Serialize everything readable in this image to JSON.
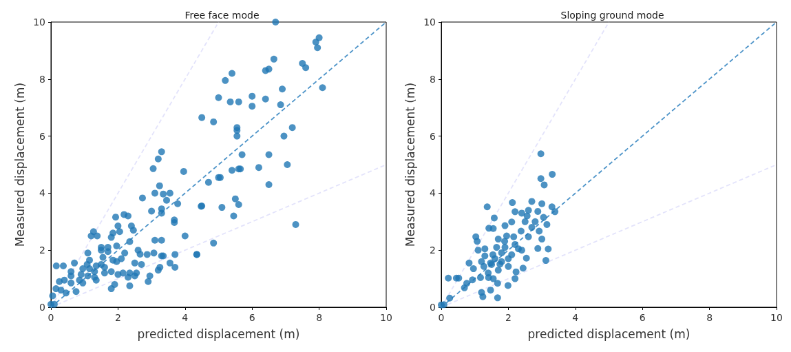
{
  "chart_data": [
    {
      "type": "scatter",
      "title": "Free face mode",
      "xlabel": "predicted displacement (m)",
      "ylabel": "Measured displacement (m)",
      "xlim": [
        0,
        10
      ],
      "ylim": [
        0,
        10
      ],
      "xticks": [
        0,
        2,
        4,
        6,
        8,
        10
      ],
      "yticks": [
        0,
        2,
        4,
        6,
        8,
        10
      ],
      "grid": false,
      "series": [
        {
          "marker": "circle",
          "color": "#1f77b4",
          "x": [
            6.7,
            8.0,
            7.9,
            7.95,
            7.5,
            7.6,
            6.65,
            6.4,
            6.5,
            5.4,
            5.2,
            5.0,
            5.35,
            5.6,
            6.0,
            6.4,
            6.9,
            6.0,
            6.85,
            8.1,
            4.5,
            4.85,
            5.55,
            5.55,
            5.55,
            6.95,
            7.2,
            5.7,
            6.5,
            5.6,
            5.65,
            6.2,
            5.0,
            5.05,
            5.4,
            7.05,
            6.5,
            4.5,
            5.5,
            5.1,
            5.6,
            5.45,
            7.3,
            4.85,
            4.35,
            3.3,
            3.2,
            3.05,
            3.96,
            4.7,
            3.24,
            3.1,
            3.35,
            3.55,
            2.73,
            3.45,
            3.78,
            4.48,
            3.0,
            3.3,
            3.3,
            1.93,
            2.18,
            2.3,
            3.68,
            3.68,
            2.0,
            2.4,
            2.46,
            2.05,
            1.27,
            1.2,
            1.38,
            1.85,
            1.8,
            4.0,
            3.1,
            3.3,
            2.35,
            1.5,
            1.7,
            1.96,
            1.1,
            1.5,
            2.2,
            2.6,
            2.66,
            2.87,
            3.07,
            3.3,
            3.35,
            3.7,
            4.35,
            2.5,
            2.7,
            3.55,
            3.25,
            3.2,
            3.7,
            0.7,
            0.16,
            0.37,
            1.08,
            1.15,
            1.35,
            1.6,
            1.96,
            2.1,
            1.85,
            1.6,
            1.8,
            2.0,
            2.15,
            2.35,
            2.55,
            2.5,
            2.3,
            2.95,
            1.8,
            1.9,
            2.35,
            0.6,
            0.6,
            0.9,
            1.1,
            1.3,
            0.85,
            0.4,
            0.25,
            0.6,
            0.95,
            1.35,
            0.75,
            0.45,
            0.3,
            0.15,
            0.05,
            0.0,
            0.1,
            0.95,
            1.3,
            1.55,
            1.7,
            1.5,
            1.15,
            2.9
          ],
          "values": [
            10.0,
            9.45,
            9.3,
            9.1,
            8.55,
            8.4,
            8.7,
            8.3,
            8.35,
            8.2,
            7.95,
            7.35,
            7.2,
            7.2,
            7.4,
            7.3,
            7.65,
            7.05,
            7.1,
            7.7,
            6.65,
            6.5,
            6.3,
            6.2,
            6.0,
            6.0,
            6.3,
            5.35,
            5.35,
            4.85,
            4.85,
            4.9,
            4.55,
            4.55,
            4.8,
            5.0,
            4.3,
            3.55,
            3.8,
            3.5,
            3.6,
            3.2,
            2.9,
            2.25,
            1.85,
            5.45,
            5.2,
            4.86,
            4.76,
            4.38,
            4.26,
            4.0,
            3.97,
            4.0,
            3.83,
            3.75,
            3.63,
            3.54,
            3.37,
            3.45,
            3.3,
            3.16,
            3.25,
            3.2,
            3.06,
            2.97,
            2.85,
            2.85,
            2.7,
            2.65,
            2.65,
            2.5,
            2.5,
            2.6,
            2.45,
            2.5,
            2.35,
            2.35,
            2.3,
            2.1,
            2.1,
            2.15,
            1.9,
            2.0,
            1.9,
            2.0,
            1.86,
            1.85,
            1.9,
            1.8,
            1.8,
            1.85,
            1.85,
            1.55,
            1.5,
            1.55,
            1.4,
            1.3,
            1.4,
            1.55,
            1.45,
            1.45,
            1.5,
            1.35,
            1.45,
            1.4,
            1.6,
            1.7,
            1.65,
            1.2,
            1.25,
            1.15,
            1.2,
            1.2,
            1.2,
            1.1,
            1.05,
            1.1,
            0.65,
            0.8,
            0.75,
            1.25,
            1.1,
            1.15,
            1.1,
            1.05,
            0.95,
            0.95,
            0.9,
            0.85,
            0.85,
            0.95,
            0.55,
            0.5,
            0.6,
            0.65,
            0.4,
            0.1,
            0.1,
            1.35,
            1.25,
            1.75,
            1.95,
            1.5,
            1.65,
            0.9
          ]
        },
        {
          "type": "line",
          "color": "#4c93c8",
          "line_style": "dashed",
          "x": [
            0,
            10
          ],
          "values": [
            0,
            10
          ]
        },
        {
          "type": "line",
          "color": "#e3e3fb",
          "line_style": "dashed",
          "x": [
            0,
            5
          ],
          "values": [
            0,
            10
          ]
        },
        {
          "type": "line",
          "color": "#e3e3fb",
          "line_style": "dashed",
          "x": [
            0,
            10
          ],
          "values": [
            0,
            5
          ]
        }
      ]
    },
    {
      "type": "scatter",
      "title": "Sloping ground mode",
      "xlabel": "predicted displacement (m)",
      "ylabel": "Measured displacement (m)",
      "xlim": [
        0,
        10
      ],
      "ylim": [
        0,
        10
      ],
      "xticks": [
        0,
        2,
        4,
        6,
        8,
        10
      ],
      "yticks": [
        0,
        2,
        4,
        6,
        8,
        10
      ],
      "grid": false,
      "series": [
        {
          "marker": "circle",
          "color": "#1f77b4",
          "x": [
            2.97,
            3.31,
            2.97,
            3.07,
            1.37,
            2.12,
            2.7,
            3.0,
            3.3,
            3.39,
            1.58,
            2.2,
            2.4,
            2.56,
            2.88,
            3.05,
            3.15,
            1.42,
            1.55,
            1.9,
            2.1,
            2.38,
            2.6,
            1.03,
            1.07,
            2.92,
            3.0,
            1.7,
            1.89,
            2.16,
            2.88,
            3.19,
            3.12,
            1.1,
            1.3,
            1.54,
            1.8,
            2.1,
            2.3,
            2.54,
            0.83,
            0.96,
            1.27,
            1.47,
            1.75,
            2.0,
            2.23,
            2.44,
            0.21,
            0.45,
            0.52,
            0.76,
            0.93,
            1.17,
            1.41,
            1.68,
            1.99,
            2.2,
            0.69,
            1.2,
            1.24,
            1.47,
            1.68,
            0.25,
            0.08,
            0.0,
            1.5,
            1.6,
            1.8,
            2.0,
            1.9,
            2.2,
            1.4,
            1.7,
            1.3,
            2.4,
            2.7,
            2.5,
            1.65,
            1.95,
            2.6,
            2.8,
            1.2,
            1.55
          ],
          "values": [
            5.38,
            4.66,
            4.51,
            4.29,
            3.52,
            3.67,
            3.71,
            3.63,
            3.52,
            3.35,
            3.13,
            3.35,
            3.3,
            3.2,
            3.36,
            3.15,
            2.9,
            2.77,
            2.76,
            2.86,
            2.99,
            2.67,
            2.47,
            2.47,
            2.31,
            2.67,
            2.39,
            2.39,
            2.31,
            2.47,
            2.06,
            2.04,
            1.64,
            2.0,
            2.05,
            1.84,
            1.91,
            1.84,
            2.05,
            1.72,
            1.55,
            1.35,
            1.43,
            1.55,
            1.51,
            1.43,
            1.24,
            1.37,
            1.02,
            1.02,
            1.02,
            0.84,
            0.96,
            1.04,
            1.04,
            0.84,
            0.76,
            1.0,
            0.68,
            0.52,
            0.37,
            0.6,
            0.33,
            0.32,
            0.09,
            0.08,
            1.5,
            1.7,
            1.6,
            1.7,
            2.1,
            2.2,
            1.2,
            1.3,
            1.8,
            2.0,
            2.8,
            3.0,
            2.1,
            2.5,
            3.4,
            3.0,
            1.6,
            1.0
          ]
        },
        {
          "type": "line",
          "color": "#4c93c8",
          "line_style": "dashed",
          "x": [
            0,
            10
          ],
          "values": [
            0,
            10
          ]
        },
        {
          "type": "line",
          "color": "#e3e3fb",
          "line_style": "dashed",
          "x": [
            0,
            5
          ],
          "values": [
            0,
            10
          ]
        },
        {
          "type": "line",
          "color": "#e3e3fb",
          "line_style": "dashed",
          "x": [
            0,
            10
          ],
          "values": [
            0,
            5
          ]
        }
      ]
    }
  ]
}
